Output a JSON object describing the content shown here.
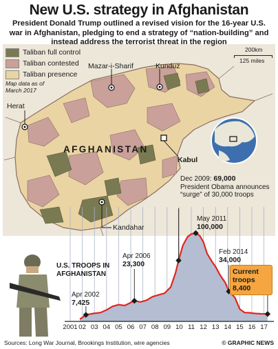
{
  "header": {
    "title": "New U.S. strategy in Afghanistan",
    "subtitle": "President Donald Trump outlined a revised vision for the 16-year U.S. war in Afghanistan, pledging to end a strategy of “nation-building” and instead address the terrorist threat in the region"
  },
  "map": {
    "legend": [
      {
        "label": "Taliban full control",
        "color": "#7a7a52"
      },
      {
        "label": "Taliban contested",
        "color": "#c9a19a"
      },
      {
        "label": "Taliban presence",
        "color": "#ead4a3"
      }
    ],
    "note_line1": "Map data as of",
    "note_line2": "March 2017",
    "scale_km": "200km",
    "scale_miles": "125 miles",
    "country_label": "AFGHANISTAN",
    "cities": [
      {
        "name": "Kunduz",
        "bold": false
      },
      {
        "name": "Mazar-i-Sharif",
        "bold": false
      },
      {
        "name": "Herat",
        "bold": false
      },
      {
        "name": "Kabul",
        "bold": true
      },
      {
        "name": "Kandahar",
        "bold": false
      }
    ],
    "background_color": "#ece7d9",
    "border_color": "#8b6d66"
  },
  "chart_data": {
    "type": "area",
    "title": "U.S. TROOPS IN AFGHANISTAN",
    "x_tick_labels": [
      "2001",
      "02",
      "03",
      "04",
      "05",
      "06",
      "07",
      "08",
      "09",
      "10",
      "11",
      "12",
      "13",
      "14",
      "15",
      "16",
      "17"
    ],
    "x": [
      2001.8,
      2002.3,
      2002.9,
      2003.5,
      2004.0,
      2004.5,
      2005.0,
      2005.5,
      2006.3,
      2006.8,
      2007.3,
      2007.8,
      2008.3,
      2008.8,
      2009.3,
      2009.7,
      2009.95,
      2010.3,
      2010.7,
      2011.0,
      2011.37,
      2011.7,
      2012.0,
      2012.3,
      2012.7,
      2013.0,
      2013.4,
      2013.8,
      2014.1,
      2014.6,
      2015.0,
      2015.4,
      2015.8,
      2016.3,
      2016.8,
      2017.3
    ],
    "y": [
      2500,
      7425,
      9000,
      10000,
      13000,
      17000,
      19000,
      18000,
      23300,
      22000,
      24000,
      28000,
      30000,
      32000,
      39000,
      55000,
      69000,
      86000,
      96000,
      99000,
      100000,
      97000,
      90000,
      77000,
      68000,
      62000,
      52000,
      44000,
      34000,
      27000,
      14000,
      10000,
      9800,
      9000,
      8600,
      8400
    ],
    "annotations": [
      {
        "date": "Apr 2002",
        "value": "7,425",
        "x": 2002.3,
        "y": 7425
      },
      {
        "date": "Apr 2006",
        "value": "23,300",
        "x": 2006.3,
        "y": 23300
      },
      {
        "date": "Dec 2009:",
        "value": "69,000",
        "text": "President Obama announces “surge” of 30,000 troops",
        "x": 2009.95,
        "y": 69000
      },
      {
        "date": "May 2011",
        "value": "100,000",
        "x": 2011.37,
        "y": 100000
      },
      {
        "date": "Feb 2014",
        "value": "34,000",
        "x": 2014.1,
        "y": 34000
      }
    ],
    "current": {
      "label": "Current troops",
      "value": "8,400",
      "x": 2017.3,
      "y": 8400
    },
    "colors": {
      "line": "#e0261e",
      "fill": "#b4bdd2",
      "marker": "#1a1a1a",
      "current": "#f5a640"
    }
  },
  "footer": {
    "sources": "Sources: Long War Journal, Brookings Institution, wire agencies",
    "credit": "© GRAPHIC NEWS"
  }
}
